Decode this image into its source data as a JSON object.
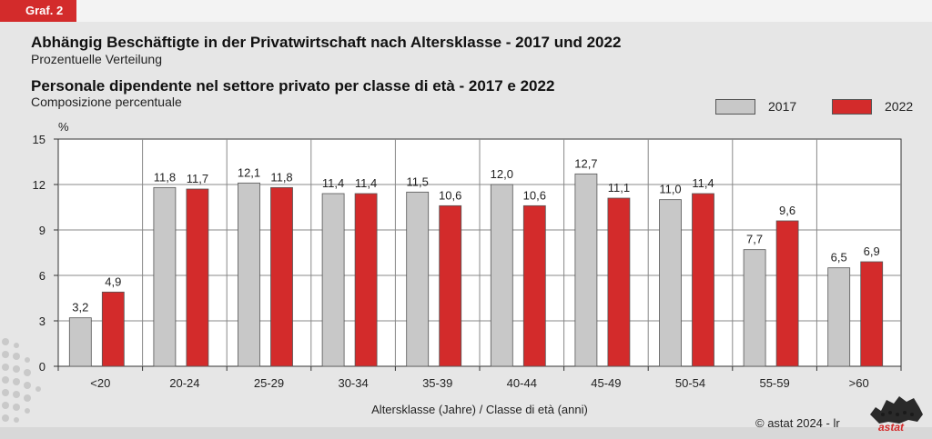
{
  "badge": "Graf. 2",
  "title_de": "Abhängig Beschäftigte in der Privatwirtschaft nach Altersklasse - 2017 und 2022",
  "subtitle_de": "Prozentuelle Verteilung",
  "title_it": "Personale dipendente nel settore privato per classe di età - 2017 e 2022",
  "subtitle_it": "Composizione percentuale",
  "credit": "©  astat 2024 - lr",
  "logo_text": "astat",
  "colors": {
    "s2017": "#c8c8c8",
    "s2022": "#d32b2b",
    "background": "#e6e6e6",
    "plot": "#ffffff"
  },
  "chart_data": {
    "type": "bar",
    "categories": [
      "<20",
      "20-24",
      "25-29",
      "30-34",
      "35-39",
      "40-44",
      "45-49",
      "50-54",
      "55-59",
      ">60"
    ],
    "series": [
      {
        "name": "2017",
        "values": [
          3.2,
          11.8,
          12.1,
          11.4,
          11.5,
          12.0,
          12.7,
          11.0,
          7.7,
          6.5
        ],
        "labels": [
          "3,2",
          "11,8",
          "12,1",
          "11,4",
          "11,5",
          "12,0",
          "12,7",
          "11,0",
          "7,7",
          "6,5"
        ]
      },
      {
        "name": "2022",
        "values": [
          4.9,
          11.7,
          11.8,
          11.4,
          10.6,
          10.6,
          11.1,
          11.4,
          9.6,
          6.9
        ],
        "labels": [
          "4,9",
          "11,7",
          "11,8",
          "11,4",
          "10,6",
          "10,6",
          "11,1",
          "11,4",
          "9,6",
          "6,9"
        ]
      }
    ],
    "xlabel": "Altersklasse (Jahre) / Classe di età (anni)",
    "ylabel": "%",
    "ylim": [
      0,
      15
    ],
    "yticks": [
      0,
      3,
      6,
      9,
      12,
      15
    ],
    "grid": true,
    "legend": "top-right"
  }
}
